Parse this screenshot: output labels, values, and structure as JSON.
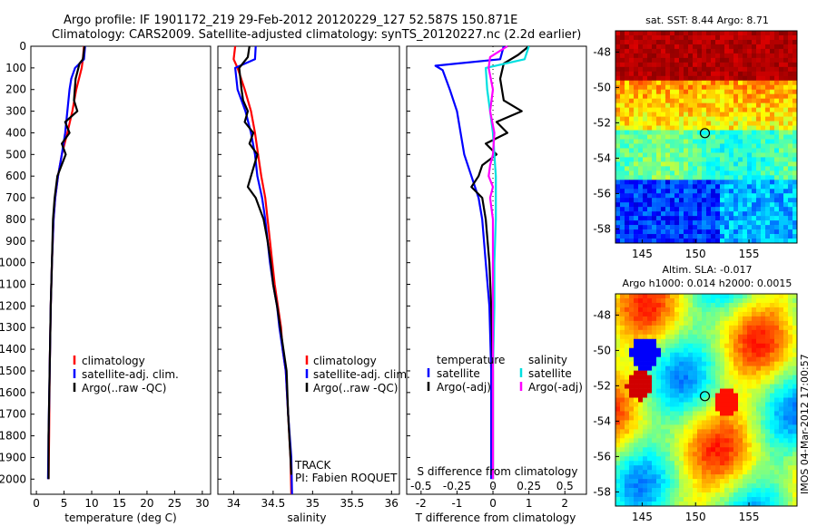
{
  "header": {
    "line1": "Argo profile: IF 1901172_219 29-Feb-2012 20120229_127 52.587S 150.871E",
    "line2": "Climatology: CARS2009. Satellite-adjusted climatology: synTS_20120227.nc (2.2d earlier)"
  },
  "colors": {
    "climatology": "#ff0000",
    "satellite": "#0000ff",
    "argo": "#000000",
    "cyan": "#00e0e0",
    "magenta": "#ff00ff"
  },
  "depth_ticks": [
    "0",
    "100",
    "200",
    "300",
    "400",
    "500",
    "600",
    "700",
    "800",
    "900",
    "1000",
    "1100",
    "1200",
    "1300",
    "1400",
    "1500",
    "1600",
    "1700",
    "1800",
    "1900",
    "2000"
  ],
  "panels": {
    "temperature": {
      "xlabel": "temperature (deg C)",
      "xticks": [
        "0",
        "5",
        "10",
        "15",
        "20",
        "25",
        "30"
      ],
      "legend": [
        "climatology",
        "satellite-adj. clim.",
        "Argo(..raw -QC)"
      ]
    },
    "salinity": {
      "xlabel": "salinity",
      "xticks": [
        "34",
        "34.5",
        "35",
        "35.5",
        "36"
      ],
      "legend": [
        "climatology",
        "satellite-adj. clim.",
        "Argo(..raw -QC)"
      ],
      "track_label": "TRACK",
      "pi_label": "PI: Fabien ROQUET"
    },
    "difference": {
      "xlabel": "T difference from climatology",
      "top_label": "S difference from climatology",
      "s_ticks": [
        "-0.5",
        "-0.25",
        "0",
        "0.25",
        "0.5"
      ],
      "t_ticks": [
        "-2",
        "-1",
        "0",
        "1",
        "2"
      ],
      "legend_temp_title": "temperature",
      "legend_sal_title": "salinity",
      "legend_temp": [
        "satellite",
        "Argo(-adj)"
      ],
      "legend_sal": [
        "satellite",
        "Argo(-adj)"
      ]
    }
  },
  "maps": {
    "sst": {
      "title": "sat. SST: 8.44 Argo: 8.71",
      "yticks": [
        "-48",
        "-50",
        "-52",
        "-54",
        "-56",
        "-58"
      ],
      "xticks": [
        "145",
        "150",
        "155"
      ]
    },
    "sla": {
      "title1": "Altim. SLA: -0.017",
      "title2": "Argo h1000: 0.014 h2000: 0.0015",
      "yticks": [
        "-48",
        "-50",
        "-52",
        "-54",
        "-56",
        "-58"
      ],
      "xticks": [
        "145",
        "150",
        "155"
      ]
    },
    "float_position": {
      "lon": 150.871,
      "lat": -52.587
    }
  },
  "footer_stamp": "IMOS 04-Mar-2012 17:00:57",
  "chart_data": [
    {
      "type": "line",
      "name": "temperature profile",
      "xlabel": "temperature (deg C)",
      "ylabel": "",
      "xlim": [
        -1,
        31.5
      ],
      "ylim": [
        2070,
        0
      ],
      "series": [
        {
          "name": "climatology",
          "depth": [
            0,
            60,
            100,
            200,
            300,
            400,
            500,
            600,
            700,
            800,
            1000,
            1200,
            1500,
            1800,
            2000
          ],
          "values": [
            8.6,
            8.4,
            8.2,
            7.2,
            6.5,
            5.6,
            4.6,
            3.9,
            3.4,
            3.1,
            2.8,
            2.6,
            2.4,
            2.3,
            2.2
          ]
        },
        {
          "name": "satellite-adj. clim.",
          "depth": [
            0,
            60,
            100,
            150,
            200,
            300,
            400,
            500,
            600,
            700,
            800,
            1000,
            1200,
            1500,
            1800,
            2000
          ],
          "values": [
            8.8,
            8.6,
            7.0,
            6.3,
            6.0,
            5.6,
            5.2,
            4.6,
            3.9,
            3.4,
            3.1,
            2.8,
            2.6,
            2.4,
            2.2,
            2.1
          ]
        },
        {
          "name": "Argo(..raw -QC)",
          "depth": [
            0,
            60,
            80,
            150,
            250,
            300,
            350,
            400,
            450,
            500,
            600,
            700,
            800,
            1000,
            1200,
            1500,
            1800,
            2000
          ],
          "values": [
            8.7,
            8.4,
            7.8,
            7.1,
            6.8,
            7.4,
            5.2,
            6.0,
            4.6,
            5.3,
            3.8,
            3.3,
            3.0,
            2.8,
            2.6,
            2.4,
            2.2,
            2.2
          ]
        }
      ]
    },
    {
      "type": "line",
      "name": "salinity profile",
      "xlabel": "salinity",
      "ylabel": "",
      "xlim": [
        33.8,
        36.1
      ],
      "ylim": [
        2070,
        0
      ],
      "series": [
        {
          "name": "climatology",
          "depth": [
            0,
            60,
            100,
            200,
            300,
            400,
            500,
            600,
            700,
            800,
            900,
            1000,
            1100,
            1200,
            1300,
            1400,
            1500,
            1700,
            1900,
            2070
          ],
          "values": [
            34.02,
            34.0,
            34.05,
            34.14,
            34.22,
            34.27,
            34.31,
            34.35,
            34.4,
            34.43,
            34.46,
            34.49,
            34.52,
            34.56,
            34.6,
            34.62,
            34.66,
            34.69,
            34.72,
            34.73
          ]
        },
        {
          "name": "satellite-adj. clim.",
          "depth": [
            0,
            60,
            100,
            200,
            300,
            400,
            500,
            600,
            700,
            800,
            900,
            1000,
            1100,
            1200,
            1300,
            1400,
            1500,
            1700,
            1900,
            2070
          ],
          "values": [
            34.28,
            34.27,
            34.02,
            34.05,
            34.15,
            34.22,
            34.27,
            34.3,
            34.36,
            34.4,
            34.43,
            34.46,
            34.5,
            34.55,
            34.58,
            34.62,
            34.66,
            34.69,
            34.73,
            34.74
          ]
        },
        {
          "name": "Argo(..raw -QC)",
          "depth": [
            0,
            50,
            100,
            200,
            250,
            300,
            350,
            400,
            450,
            500,
            550,
            600,
            650,
            700,
            800,
            900,
            1000,
            1100,
            1200,
            1300,
            1400,
            1500,
            1700,
            1900,
            1980
          ],
          "values": [
            34.2,
            34.18,
            34.07,
            34.1,
            34.12,
            34.18,
            34.14,
            34.25,
            34.2,
            34.3,
            34.26,
            34.22,
            34.18,
            34.28,
            34.38,
            34.43,
            34.47,
            34.5,
            34.55,
            34.59,
            34.63,
            34.67,
            34.69,
            34.72,
            34.73
          ]
        }
      ]
    },
    {
      "type": "line",
      "name": "difference from climatology",
      "xlabel": "T difference from climatology",
      "top_axis_label": "S difference from climatology",
      "xlim": [
        -2.4,
        2.6
      ],
      "s_axis_lim": [
        -0.6,
        0.65
      ],
      "ylim": [
        2070,
        0
      ],
      "series": [
        {
          "name": "temperature satellite",
          "axis": "T",
          "depth": [
            0,
            60,
            90,
            110,
            200,
            300,
            400,
            500,
            600,
            700,
            800,
            1000,
            1200,
            1500,
            1800,
            2000
          ],
          "values": [
            0.3,
            0.2,
            -1.6,
            -1.4,
            -1.2,
            -1.0,
            -0.9,
            -0.8,
            -0.6,
            -0.4,
            -0.3,
            -0.2,
            -0.1,
            -0.05,
            -0.05,
            -0.05
          ]
        },
        {
          "name": "temperature Argo(-adj)",
          "axis": "T",
          "depth": [
            0,
            40,
            80,
            150,
            250,
            300,
            350,
            400,
            450,
            500,
            550,
            600,
            650,
            700,
            800,
            1000,
            1200,
            1500,
            1800,
            2000
          ],
          "values": [
            1.0,
            0.7,
            0.3,
            0.2,
            0.3,
            0.8,
            0.1,
            0.4,
            -0.2,
            0.1,
            -0.3,
            -0.4,
            -0.6,
            -0.3,
            -0.2,
            -0.1,
            -0.05,
            0.0,
            0.0,
            0.0
          ]
        },
        {
          "name": "salinity satellite",
          "axis": "S",
          "depth": [
            0,
            60,
            100,
            200,
            300,
            400,
            500,
            600,
            700,
            800,
            1000,
            1200,
            1500,
            1800,
            2000
          ],
          "values": [
            0.25,
            0.22,
            -0.05,
            -0.04,
            -0.02,
            0.0,
            0.01,
            0.02,
            0.02,
            0.02,
            0.01,
            0.01,
            0.0,
            0.0,
            0.0
          ]
        },
        {
          "name": "salinity Argo(-adj)",
          "axis": "S",
          "depth": [
            0,
            50,
            100,
            200,
            300,
            400,
            500,
            550,
            600,
            650,
            700,
            800,
            1000,
            1200,
            1500,
            1800,
            2000
          ],
          "values": [
            0.1,
            -0.02,
            -0.03,
            0.0,
            -0.02,
            0.01,
            0.0,
            -0.02,
            -0.03,
            0.0,
            -0.02,
            0.0,
            0.0,
            0.0,
            0.0,
            0.0,
            0.0
          ]
        }
      ]
    },
    {
      "type": "heatmap",
      "name": "sat. SST map",
      "title": "sat. SST: 8.44 Argo: 8.71",
      "xlim": [
        142.5,
        159.5
      ],
      "ylim": [
        -58.8,
        -46.8
      ],
      "xticks": [
        145,
        150,
        155
      ],
      "yticks": [
        -48,
        -50,
        -52,
        -54,
        -56,
        -58
      ],
      "marker": {
        "lon": 150.871,
        "lat": -52.587
      }
    },
    {
      "type": "heatmap",
      "name": "Altim. SLA map",
      "title": "Altim. SLA: -0.017 / Argo h1000: 0.014 h2000: 0.0015",
      "xlim": [
        142.5,
        159.5
      ],
      "ylim": [
        -58.8,
        -46.8
      ],
      "xticks": [
        145,
        150,
        155
      ],
      "yticks": [
        -48,
        -50,
        -52,
        -54,
        -56,
        -58
      ],
      "marker": {
        "lon": 150.871,
        "lat": -52.587
      }
    }
  ]
}
